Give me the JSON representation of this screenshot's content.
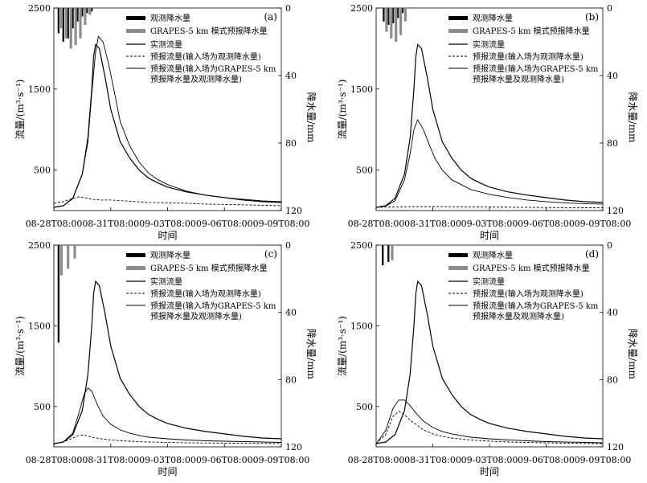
{
  "chart_data": [
    {
      "panel": "(a)",
      "type": "line",
      "xlabel": "时间",
      "ylabel": "流量/(m³·s⁻¹)",
      "y2label": "降水量/mm",
      "ylim": [
        0,
        2500
      ],
      "y2lim": [
        0,
        120
      ],
      "yticks": [
        "500",
        "1500",
        "2500"
      ],
      "y2ticks": [
        "0",
        "40",
        "80",
        "120"
      ],
      "xticks": [
        "08-28T08:00",
        "08-31T08:00",
        "09-03T08:00",
        "09-06T08:00",
        "09-09T08:00"
      ],
      "legend": [
        "观测降水量",
        "GRAPES-5 km 模式预报降水量",
        "实测流量",
        "预报流量(输入场为观测降水量)",
        "预报流量(输入场为GRAPES-5 km",
        "预报降水量及观测降水量)"
      ],
      "obs_rain": {
        "x": [
          0.25,
          0.5,
          0.75,
          1.0,
          1.25,
          1.5,
          1.75,
          2.0
        ],
        "values": [
          15,
          20,
          18,
          12,
          8,
          5,
          3,
          2
        ]
      },
      "fcst_rain": {
        "x": [
          0.4,
          0.65,
          0.9,
          1.15,
          1.4,
          1.65,
          1.9
        ],
        "values": [
          12,
          18,
          24,
          22,
          18,
          10,
          4
        ]
      },
      "series": [
        {
          "name": "实测流量",
          "style": "solid",
          "width": 1.2,
          "x": [
            0,
            0.5,
            1,
            1.5,
            1.8,
            2.0,
            2.1,
            2.2,
            2.4,
            2.7,
            3,
            3.5,
            4,
            4.5,
            5,
            5.5,
            6,
            7,
            8,
            9,
            10,
            11,
            12
          ],
          "values": [
            40,
            60,
            150,
            450,
            900,
            1500,
            1900,
            2050,
            2000,
            1650,
            1250,
            850,
            650,
            500,
            400,
            340,
            290,
            230,
            190,
            160,
            130,
            110,
            100
          ]
        },
        {
          "name": "预报流量(输入场为观测降水量)",
          "style": "dashed",
          "width": 0.9,
          "x": [
            0,
            0.5,
            1,
            1.3,
            1.6,
            2,
            2.5,
            3,
            4,
            5,
            6,
            7,
            8,
            9,
            10,
            11,
            12
          ],
          "values": [
            90,
            110,
            150,
            170,
            160,
            140,
            130,
            130,
            115,
            100,
            95,
            90,
            80,
            75,
            70,
            65,
            60
          ]
        },
        {
          "name": "预报流量(输入场为GRAPES-5 km预报降水量及观测降水量)",
          "style": "solid",
          "width": 0.9,
          "x": [
            0,
            0.5,
            1,
            1.5,
            1.8,
            2.0,
            2.2,
            2.35,
            2.6,
            2.9,
            3.2,
            3.5,
            4,
            4.5,
            5,
            5.5,
            6,
            7,
            8,
            9,
            10,
            11,
            12
          ],
          "values": [
            40,
            60,
            150,
            450,
            850,
            1450,
            1950,
            2150,
            2080,
            1800,
            1450,
            1100,
            800,
            600,
            460,
            380,
            320,
            240,
            190,
            160,
            140,
            120,
            110
          ]
        }
      ]
    },
    {
      "panel": "(b)",
      "type": "line",
      "xlabel": "时间",
      "ylabel": "流量/(m³·s⁻¹)",
      "y2label": "降水量/mm",
      "ylim": [
        0,
        2500
      ],
      "y2lim": [
        0,
        120
      ],
      "yticks": [
        "500",
        "1500",
        "2500"
      ],
      "y2ticks": [
        "0",
        "40",
        "80",
        "120"
      ],
      "xticks": [
        "08-28T08:00",
        "08-31T08:00",
        "09-03T08:00",
        "09-06T08:00",
        "09-09T08:00"
      ],
      "legend": [
        "观测降水量",
        "GRAPES-5 km 模式预报降水量",
        "实测流量",
        "预报流量(输入场为观测降水量)",
        "预报流量(输入场为GRAPES-5 km",
        "预报降水量及观测降水量)"
      ],
      "obs_rain": {
        "x": [
          0.4,
          0.65,
          0.9,
          1.15,
          1.4
        ],
        "values": [
          8,
          10,
          9,
          6,
          3
        ]
      },
      "fcst_rain": {
        "x": [
          0.55,
          0.8,
          1.05,
          1.3,
          1.55
        ],
        "values": [
          14,
          18,
          20,
          16,
          8
        ]
      },
      "series": [
        {
          "name": "实测流量",
          "style": "solid",
          "width": 1.2,
          "x": [
            0,
            0.5,
            1,
            1.5,
            1.8,
            2.0,
            2.1,
            2.2,
            2.4,
            2.7,
            3,
            3.5,
            4,
            4.5,
            5,
            5.5,
            6,
            7,
            8,
            9,
            10,
            11,
            12
          ],
          "values": [
            40,
            60,
            150,
            450,
            900,
            1500,
            1900,
            2050,
            2000,
            1650,
            1250,
            850,
            650,
            500,
            400,
            340,
            290,
            230,
            190,
            160,
            130,
            110,
            100
          ]
        },
        {
          "name": "预报流量(输入场为观测降水量)",
          "style": "dashed",
          "width": 0.9,
          "x": [
            0,
            1,
            2,
            3,
            4,
            5,
            6,
            7,
            8,
            9,
            10,
            11,
            12
          ],
          "values": [
            40,
            45,
            50,
            50,
            48,
            46,
            44,
            42,
            40,
            38,
            36,
            35,
            34
          ]
        },
        {
          "name": "预报流量(输入场为GRAPES-5 km预报降水量及观测降水量)",
          "style": "solid",
          "width": 0.9,
          "x": [
            0,
            0.5,
            1,
            1.5,
            1.8,
            2.0,
            2.2,
            2.5,
            2.8,
            3.1,
            3.5,
            4,
            4.5,
            5,
            6,
            7,
            8,
            9,
            10,
            11,
            12
          ],
          "values": [
            40,
            55,
            120,
            380,
            700,
            1000,
            1120,
            1000,
            820,
            650,
            500,
            380,
            320,
            260,
            200,
            160,
            130,
            110,
            95,
            85,
            80
          ]
        }
      ]
    },
    {
      "panel": "(c)",
      "type": "line",
      "xlabel": "时间",
      "ylabel": "流量/(m³·s⁻¹)",
      "y2label": "降水量/mm",
      "ylim": [
        0,
        2500
      ],
      "y2lim": [
        0,
        120
      ],
      "yticks": [
        "500",
        "1500",
        "2500"
      ],
      "y2ticks": [
        "0",
        "40",
        "80",
        "120"
      ],
      "xticks": [
        "08-28T08:00",
        "08-31T08:00",
        "09-03T08:00",
        "09-06T08:00",
        "09-09T08:00"
      ],
      "legend": [
        "观测降水量",
        "GRAPES-5 km 模式预报降水量",
        "实测流量",
        "预报流量(输入场为观测降水量)",
        "预报流量(输入场为GRAPES-5 km",
        "预报降水量及观测降水量)"
      ],
      "obs_rain": {
        "x": [
          0.25
        ],
        "values": [
          58
        ]
      },
      "fcst_rain": {
        "x": [
          0.4,
          0.75,
          1.1
        ],
        "values": [
          18,
          14,
          8
        ]
      },
      "series": [
        {
          "name": "实测流量",
          "style": "solid",
          "width": 1.2,
          "x": [
            0,
            0.5,
            1,
            1.5,
            1.8,
            2.0,
            2.1,
            2.2,
            2.4,
            2.7,
            3,
            3.5,
            4,
            4.5,
            5,
            5.5,
            6,
            7,
            8,
            9,
            10,
            11,
            12
          ],
          "values": [
            40,
            60,
            150,
            450,
            900,
            1500,
            1900,
            2050,
            2000,
            1650,
            1250,
            850,
            650,
            500,
            400,
            340,
            290,
            230,
            190,
            160,
            130,
            110,
            100
          ]
        },
        {
          "name": "预报流量(输入场为观测降水量)",
          "style": "dashed",
          "width": 0.9,
          "x": [
            0,
            0.5,
            1,
            1.3,
            1.6,
            2,
            2.5,
            3,
            4,
            5,
            6,
            7,
            8,
            9,
            10,
            11,
            12
          ],
          "values": [
            40,
            60,
            110,
            140,
            145,
            120,
            100,
            85,
            70,
            60,
            55,
            50,
            48,
            46,
            44,
            42,
            40
          ]
        },
        {
          "name": "预报流量(输入场为GRAPES-5 km预报降水量及观测降水量)",
          "style": "solid",
          "width": 0.9,
          "x": [
            0,
            0.5,
            1,
            1.3,
            1.6,
            1.8,
            2.0,
            2.3,
            2.6,
            3,
            3.5,
            4,
            4.5,
            5,
            6,
            7,
            8,
            9,
            10,
            11,
            12
          ],
          "values": [
            40,
            60,
            170,
            400,
            650,
            730,
            690,
            520,
            380,
            280,
            210,
            170,
            140,
            120,
            100,
            85,
            75,
            70,
            65,
            60,
            55
          ]
        }
      ]
    },
    {
      "panel": "(d)",
      "type": "line",
      "xlabel": "时间",
      "ylabel": "流量/(m³·s⁻¹)",
      "y2label": "降水量/mm",
      "ylim": [
        0,
        2500
      ],
      "y2lim": [
        0,
        120
      ],
      "yticks": [
        "500",
        "1500",
        "2500"
      ],
      "y2ticks": [
        "0",
        "40",
        "80",
        "120"
      ],
      "xticks": [
        "08-28T08:00",
        "08-31T08:00",
        "09-03T08:00",
        "09-06T08:00",
        "09-09T08:00"
      ],
      "legend": [
        "观测降水量",
        "GRAPES-5 km 模式预报降水量",
        "实测流量",
        "预报流量(输入场为观测降水量)",
        "预报流量(输入场为GRAPES-5 km",
        "预报降水量及观测降水量)"
      ],
      "obs_rain": {
        "x": [
          0.35,
          0.65
        ],
        "values": [
          12,
          10
        ]
      },
      "fcst_rain": {
        "x": [
          0.85
        ],
        "values": [
          9
        ]
      },
      "series": [
        {
          "name": "实测流量",
          "style": "solid",
          "width": 1.2,
          "x": [
            0,
            0.5,
            1,
            1.5,
            1.8,
            2.0,
            2.1,
            2.2,
            2.4,
            2.7,
            3,
            3.5,
            4,
            4.5,
            5,
            5.5,
            6,
            7,
            8,
            9,
            10,
            11,
            12
          ],
          "values": [
            40,
            60,
            150,
            450,
            900,
            1500,
            1900,
            2050,
            2000,
            1650,
            1250,
            850,
            650,
            500,
            400,
            340,
            290,
            230,
            190,
            160,
            130,
            110,
            100
          ]
        },
        {
          "name": "预报流量(输入场为观测降水量)",
          "style": "dashed",
          "width": 0.9,
          "x": [
            0,
            0.5,
            0.9,
            1.2,
            1.5,
            1.8,
            2.1,
            2.5,
            3,
            3.5,
            4,
            5,
            6,
            7,
            8,
            9,
            10,
            11,
            12
          ],
          "values": [
            40,
            150,
            380,
            440,
            400,
            330,
            280,
            210,
            160,
            130,
            110,
            85,
            70,
            60,
            55,
            50,
            45,
            42,
            40
          ]
        },
        {
          "name": "预报流量(输入场为GRAPES-5 km预报降水量及观测降水量)",
          "style": "solid",
          "width": 0.9,
          "x": [
            0,
            0.5,
            0.9,
            1.2,
            1.5,
            1.8,
            2.1,
            2.5,
            3,
            3.5,
            4,
            5,
            6,
            7,
            8,
            9,
            10,
            11,
            12
          ],
          "values": [
            40,
            200,
            480,
            580,
            580,
            510,
            420,
            320,
            240,
            190,
            160,
            120,
            100,
            85,
            75,
            65,
            60,
            55,
            50
          ]
        }
      ]
    }
  ]
}
